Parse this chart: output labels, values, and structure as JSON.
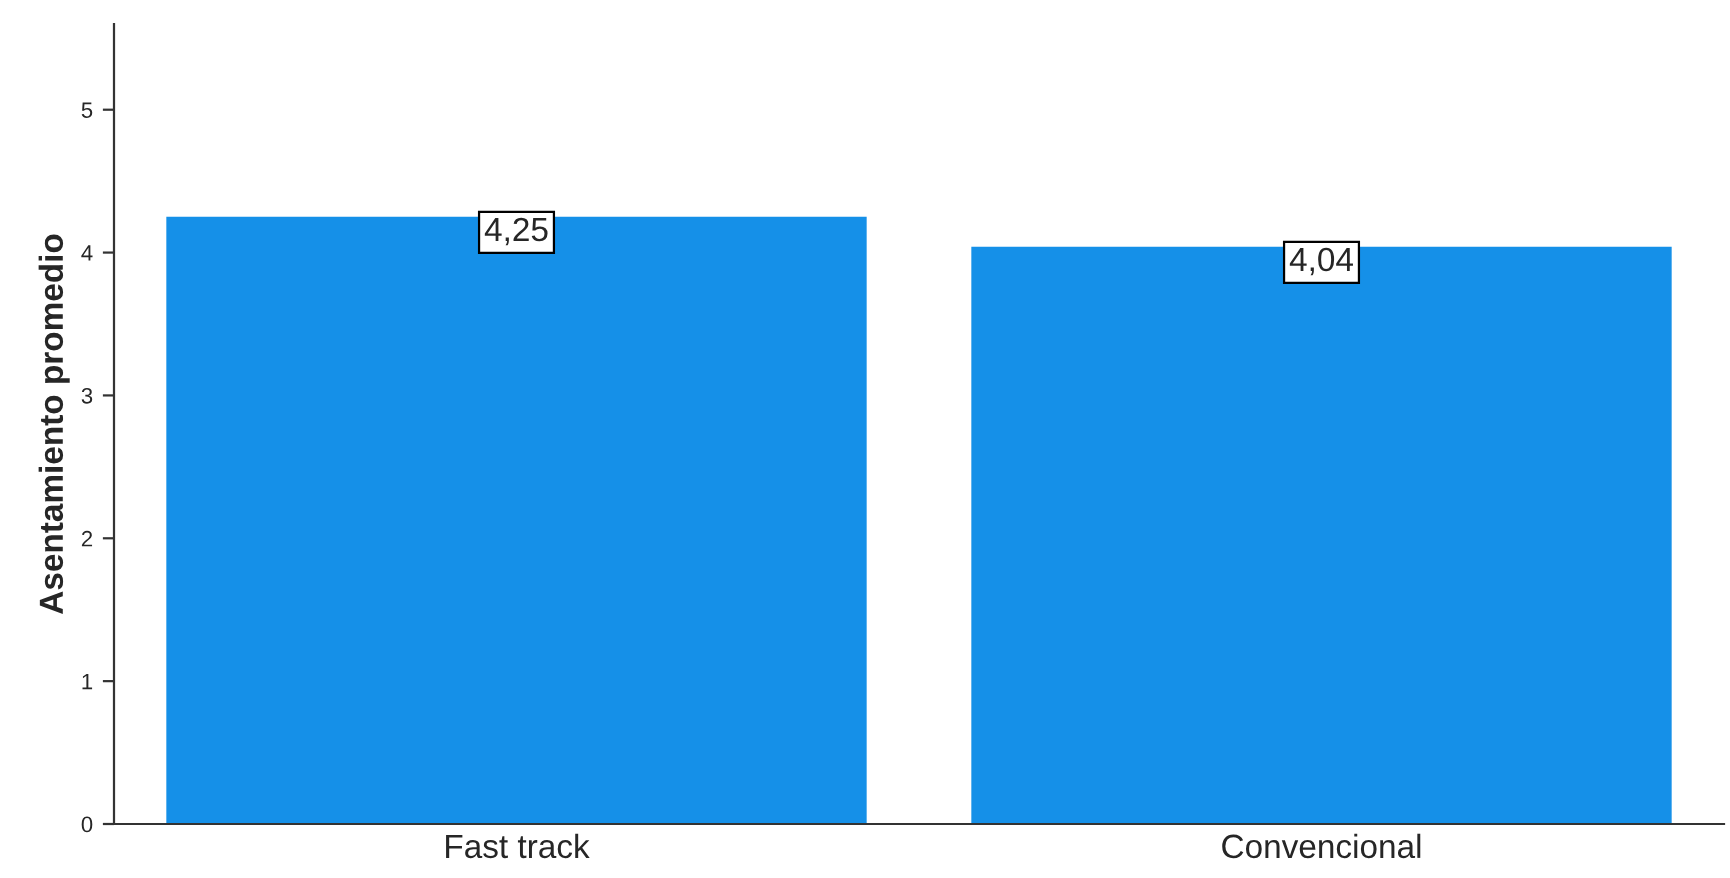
{
  "chart_data": {
    "type": "bar",
    "ylabel": "Asentamiento promedio",
    "categories": [
      "Fast track",
      "Convencional"
    ],
    "values": [
      4.25,
      4.04
    ],
    "value_labels": [
      "4,25",
      "4,04"
    ],
    "color": "#1590e8",
    "ylim": [
      0,
      5.6
    ],
    "yticks": [
      0,
      1,
      2,
      3,
      4,
      5
    ],
    "grid": false
  }
}
